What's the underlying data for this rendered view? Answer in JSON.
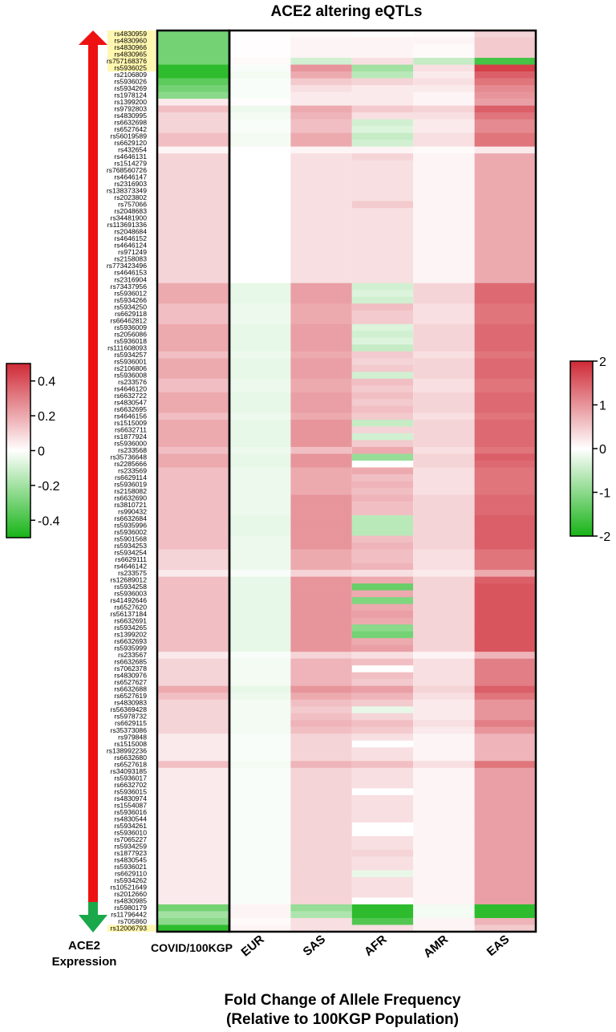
{
  "chart_data": {
    "type": "heatmap",
    "title": "ACE2 altering eQTLs",
    "xlabel_line1": "Fold Change of Allele Frequency",
    "xlabel_line2": "(Relative to 100KGP Population)",
    "arrow_label_line1": "ACE2",
    "arrow_label_line2": "Expression",
    "columns": [
      "COVID/100KGP",
      "EUR",
      "SAS",
      "AFR",
      "AMR",
      "EAS"
    ],
    "rows": [
      "rs4830959",
      "rs4830960",
      "rs4830966",
      "rs4830965",
      "rs757168376",
      "rs5936025",
      "rs2106809",
      "rs5936026",
      "rs5934269",
      "rs1978124",
      "rs1399200",
      "rs9792803",
      "rs4830995",
      "rs6632698",
      "rs6527642",
      "rs56019589",
      "rs6629120",
      "rs432654",
      "rs4646131",
      "rs1514279",
      "rs768560726",
      "rs4646147",
      "rs2316903",
      "rs138373349",
      "rs2023802",
      "rs757066",
      "rs2048683",
      "rs34481900",
      "rs113691336",
      "rs2048684",
      "rs4646152",
      "rs4646124",
      "rs971249",
      "rs2158083",
      "rs773423496",
      "rs4646153",
      "rs2316904",
      "rs73437956",
      "rs5936012",
      "rs5934266",
      "rs5934250",
      "rs6629118",
      "rs66462812",
      "rs5936009",
      "rs2056086",
      "rs5936018",
      "rs111608093",
      "rs5934257",
      "rs5936001",
      "rs2106806",
      "rs5936008",
      "rs233576",
      "rs4646120",
      "rs6632722",
      "rs4830547",
      "rs6632695",
      "rs4646156",
      "rs1515009",
      "rs6632711",
      "rs1877924",
      "rs5936000",
      "rs233568",
      "rs35736648",
      "rs2285666",
      "rs233569",
      "rs6629114",
      "rs5936019",
      "rs2158082",
      "rs6632690",
      "rs3810721",
      "rs990432",
      "rs6632684",
      "rs5935996",
      "rs5936002",
      "rs5901568",
      "rs5934253",
      "rs5934254",
      "rs6629111",
      "rs4646142",
      "rs233575",
      "rs12689012",
      "rs5934258",
      "rs5936003",
      "rs41492646",
      "rs6527620",
      "rs56137184",
      "rs6632691",
      "rs5934265",
      "rs1399202",
      "rs6632693",
      "rs5935999",
      "rs233567",
      "rs6632685",
      "rs7062378",
      "rs4830976",
      "rs6527627",
      "rs6632688",
      "rs6527619",
      "rs4830983",
      "rs56369428",
      "rs5978732",
      "rs6629115",
      "rs35373086",
      "rs979848",
      "rs1515008",
      "rs138992236",
      "rs6632680",
      "rs6527618",
      "rs34093185",
      "rs5936017",
      "rs6632702",
      "rs5936015",
      "rs4830974",
      "rs1554087",
      "rs5936016",
      "rs4830544",
      "rs5934261",
      "rs5936010",
      "rs7065227",
      "rs5934259",
      "rs1877923",
      "rs4830545",
      "rs5936021",
      "rs6629110",
      "rs5934262",
      "rs10521649",
      "rs2012660",
      "rs4830985",
      "rs5980179",
      "rs11796442",
      "rs705860",
      "rs12006793"
    ],
    "highlighted_rows": [
      "rs4830959",
      "rs4830960",
      "rs4830966",
      "rs4830965",
      "rs757168376",
      "rs5936025",
      "rs12006793"
    ],
    "values": [
      [
        -0.3,
        0.02,
        0.05,
        0.03,
        0.05,
        0.4
      ],
      [
        -0.3,
        0.02,
        0.1,
        0.1,
        0.1,
        0.5
      ],
      [
        -0.3,
        0.02,
        0.1,
        0.1,
        0.05,
        0.5
      ],
      [
        -0.3,
        0.02,
        0.1,
        0.1,
        0.05,
        0.5
      ],
      [
        -0.3,
        0.05,
        -0.4,
        0.3,
        -0.5,
        -1.6
      ],
      [
        -0.45,
        -0.05,
        1.0,
        -0.8,
        0.3,
        1.8
      ],
      [
        -0.45,
        -0.1,
        0.8,
        -0.6,
        0.2,
        1.5
      ],
      [
        -0.35,
        -0.05,
        0.5,
        0.4,
        0.3,
        1.3
      ],
      [
        -0.3,
        -0.05,
        0.3,
        0.2,
        0.2,
        1.1
      ],
      [
        -0.25,
        -0.05,
        0.2,
        0.2,
        0.1,
        1.0
      ],
      [
        0.05,
        0.02,
        0.2,
        0.2,
        0.1,
        0.9
      ],
      [
        0.15,
        -0.15,
        0.8,
        0.5,
        0.4,
        1.5
      ],
      [
        0.1,
        -0.1,
        0.7,
        0.3,
        0.3,
        1.3
      ],
      [
        0.1,
        -0.05,
        0.6,
        -0.4,
        0.2,
        1.1
      ],
      [
        0.1,
        -0.05,
        0.6,
        -0.3,
        0.2,
        1.1
      ],
      [
        0.15,
        -0.1,
        0.8,
        -0.5,
        0.3,
        1.3
      ],
      [
        0.15,
        -0.1,
        0.8,
        -0.4,
        0.3,
        1.3
      ],
      [
        0.02,
        0.0,
        0.1,
        0.1,
        0.05,
        0.2
      ],
      [
        0.1,
        0.0,
        0.3,
        0.4,
        0.1,
        0.8
      ],
      [
        0.1,
        0.0,
        0.3,
        0.3,
        0.1,
        0.8
      ],
      [
        0.1,
        0.0,
        0.3,
        0.3,
        0.1,
        0.8
      ],
      [
        0.1,
        0.0,
        0.3,
        0.3,
        0.1,
        0.8
      ],
      [
        0.1,
        0.0,
        0.3,
        0.3,
        0.1,
        0.8
      ],
      [
        0.1,
        0.0,
        0.3,
        0.3,
        0.1,
        0.8
      ],
      [
        0.1,
        0.0,
        0.3,
        0.3,
        0.1,
        0.8
      ],
      [
        0.1,
        0.0,
        0.3,
        0.5,
        0.1,
        0.8
      ],
      [
        0.1,
        0.0,
        0.3,
        0.3,
        0.1,
        0.8
      ],
      [
        0.1,
        0.0,
        0.3,
        0.3,
        0.1,
        0.8
      ],
      [
        0.1,
        0.0,
        0.3,
        0.3,
        0.1,
        0.8
      ],
      [
        0.1,
        0.0,
        0.3,
        0.3,
        0.1,
        0.8
      ],
      [
        0.1,
        0.0,
        0.3,
        0.3,
        0.1,
        0.8
      ],
      [
        0.1,
        0.0,
        0.3,
        0.3,
        0.1,
        0.8
      ],
      [
        0.1,
        0.0,
        0.3,
        0.3,
        0.1,
        0.8
      ],
      [
        0.1,
        0.0,
        0.3,
        0.3,
        0.1,
        0.8
      ],
      [
        0.1,
        0.0,
        0.3,
        0.3,
        0.1,
        0.8
      ],
      [
        0.1,
        0.0,
        0.3,
        0.3,
        0.1,
        0.8
      ],
      [
        0.1,
        0.0,
        0.3,
        0.3,
        0.1,
        0.8
      ],
      [
        0.2,
        -0.2,
        0.9,
        -0.4,
        0.4,
        1.4
      ],
      [
        0.2,
        -0.2,
        0.9,
        -0.3,
        0.4,
        1.4
      ],
      [
        0.2,
        -0.2,
        0.9,
        -0.4,
        0.4,
        1.4
      ],
      [
        0.15,
        -0.15,
        0.8,
        0.6,
        0.3,
        1.3
      ],
      [
        0.15,
        -0.15,
        0.8,
        0.5,
        0.3,
        1.3
      ],
      [
        0.15,
        -0.15,
        0.8,
        0.5,
        0.3,
        1.3
      ],
      [
        0.2,
        -0.2,
        0.9,
        -0.3,
        0.4,
        1.4
      ],
      [
        0.2,
        -0.2,
        0.9,
        -0.4,
        0.4,
        1.4
      ],
      [
        0.2,
        -0.2,
        0.9,
        -0.3,
        0.4,
        1.4
      ],
      [
        0.2,
        -0.2,
        0.9,
        -0.5,
        0.4,
        1.4
      ],
      [
        0.15,
        -0.15,
        0.8,
        0.5,
        0.3,
        1.3
      ],
      [
        0.2,
        -0.2,
        0.9,
        0.4,
        0.4,
        1.4
      ],
      [
        0.2,
        -0.2,
        0.9,
        0.5,
        0.4,
        1.4
      ],
      [
        0.2,
        -0.2,
        0.9,
        -0.4,
        0.4,
        1.4
      ],
      [
        0.15,
        -0.15,
        0.8,
        0.6,
        0.3,
        1.3
      ],
      [
        0.15,
        -0.15,
        0.8,
        0.5,
        0.3,
        1.3
      ],
      [
        0.2,
        -0.2,
        0.9,
        0.6,
        0.4,
        1.4
      ],
      [
        0.2,
        -0.2,
        0.9,
        0.5,
        0.4,
        1.4
      ],
      [
        0.2,
        -0.2,
        0.9,
        0.6,
        0.4,
        1.4
      ],
      [
        0.15,
        -0.15,
        0.8,
        0.5,
        0.3,
        1.3
      ],
      [
        0.2,
        -0.2,
        1.0,
        -0.5,
        0.4,
        1.4
      ],
      [
        0.2,
        -0.2,
        1.0,
        0.4,
        0.4,
        1.4
      ],
      [
        0.2,
        -0.2,
        1.0,
        -0.4,
        0.4,
        1.4
      ],
      [
        0.2,
        -0.2,
        1.0,
        0.5,
        0.4,
        1.4
      ],
      [
        0.15,
        -0.15,
        0.6,
        0.8,
        0.3,
        1.3
      ],
      [
        0.2,
        -0.2,
        1.0,
        -0.9,
        0.4,
        1.5
      ],
      [
        0.2,
        -0.2,
        1.0,
        0.0,
        0.4,
        1.4
      ],
      [
        0.15,
        -0.15,
        0.8,
        0.8,
        0.3,
        1.3
      ],
      [
        0.15,
        -0.15,
        0.8,
        0.6,
        0.3,
        1.3
      ],
      [
        0.15,
        -0.15,
        0.8,
        0.7,
        0.3,
        1.3
      ],
      [
        0.15,
        -0.15,
        0.8,
        0.6,
        0.3,
        1.3
      ],
      [
        0.15,
        -0.15,
        1.0,
        0.7,
        0.4,
        1.4
      ],
      [
        0.15,
        -0.15,
        1.0,
        0.6,
        0.4,
        1.4
      ],
      [
        0.15,
        -0.15,
        1.0,
        0.6,
        0.4,
        1.4
      ],
      [
        0.15,
        -0.2,
        1.0,
        -0.6,
        0.4,
        1.5
      ],
      [
        0.15,
        -0.2,
        1.0,
        -0.6,
        0.4,
        1.5
      ],
      [
        0.15,
        -0.2,
        1.0,
        -0.6,
        0.4,
        1.5
      ],
      [
        0.15,
        -0.15,
        1.0,
        0.6,
        0.4,
        1.5
      ],
      [
        0.15,
        -0.15,
        1.0,
        0.7,
        0.4,
        1.5
      ],
      [
        0.1,
        -0.15,
        0.8,
        0.6,
        0.3,
        1.3
      ],
      [
        0.1,
        -0.15,
        0.8,
        0.6,
        0.3,
        1.3
      ],
      [
        0.1,
        -0.15,
        0.8,
        0.7,
        0.3,
        1.3
      ],
      [
        0.05,
        -0.05,
        0.4,
        0.3,
        0.2,
        0.8
      ],
      [
        0.15,
        -0.2,
        1.0,
        0.8,
        0.4,
        1.5
      ],
      [
        0.15,
        -0.2,
        1.0,
        -1.3,
        0.4,
        1.6
      ],
      [
        0.15,
        -0.2,
        1.0,
        0.8,
        0.4,
        1.6
      ],
      [
        0.15,
        -0.2,
        1.0,
        -1.1,
        0.4,
        1.6
      ],
      [
        0.15,
        -0.2,
        1.0,
        0.8,
        0.4,
        1.6
      ],
      [
        0.15,
        -0.2,
        1.0,
        0.9,
        0.4,
        1.6
      ],
      [
        0.15,
        -0.2,
        1.0,
        0.8,
        0.4,
        1.6
      ],
      [
        0.15,
        -0.2,
        1.0,
        -1.0,
        0.4,
        1.6
      ],
      [
        0.15,
        -0.2,
        1.0,
        -1.2,
        0.4,
        1.6
      ],
      [
        0.15,
        -0.2,
        1.0,
        0.8,
        0.4,
        1.6
      ],
      [
        0.15,
        -0.2,
        1.0,
        0.9,
        0.4,
        1.6
      ],
      [
        0.05,
        -0.05,
        0.4,
        0.3,
        0.1,
        0.7
      ],
      [
        0.1,
        -0.1,
        0.7,
        0.6,
        0.3,
        1.2
      ],
      [
        0.1,
        -0.1,
        0.7,
        0.0,
        0.3,
        1.2
      ],
      [
        0.1,
        -0.1,
        0.7,
        0.6,
        0.3,
        1.2
      ],
      [
        0.1,
        -0.1,
        0.7,
        0.5,
        0.3,
        1.2
      ],
      [
        0.2,
        -0.2,
        1.0,
        0.9,
        0.4,
        1.5
      ],
      [
        0.15,
        -0.15,
        0.8,
        0.7,
        0.3,
        1.3
      ],
      [
        0.1,
        -0.1,
        0.6,
        0.5,
        0.2,
        1.0
      ],
      [
        0.1,
        -0.1,
        0.5,
        -0.2,
        0.2,
        1.0
      ],
      [
        0.1,
        -0.1,
        0.6,
        0.4,
        0.2,
        1.0
      ],
      [
        0.1,
        -0.1,
        0.7,
        0.6,
        0.3,
        1.2
      ],
      [
        0.1,
        -0.1,
        0.6,
        0.5,
        0.2,
        1.0
      ],
      [
        0.05,
        -0.05,
        0.4,
        0.3,
        0.1,
        0.7
      ],
      [
        0.05,
        -0.05,
        0.4,
        0.0,
        0.1,
        0.7
      ],
      [
        0.05,
        -0.05,
        0.4,
        0.3,
        0.1,
        0.7
      ],
      [
        0.05,
        -0.05,
        0.4,
        0.3,
        0.1,
        0.7
      ],
      [
        0.15,
        -0.1,
        0.7,
        0.6,
        0.3,
        1.3
      ],
      [
        0.05,
        -0.05,
        0.4,
        0.3,
        0.1,
        0.9
      ],
      [
        0.05,
        -0.05,
        0.4,
        0.3,
        0.1,
        0.9
      ],
      [
        0.05,
        -0.05,
        0.4,
        0.3,
        0.1,
        0.9
      ],
      [
        0.05,
        -0.05,
        0.4,
        0.0,
        0.1,
        0.9
      ],
      [
        0.05,
        -0.05,
        0.4,
        0.3,
        0.1,
        0.9
      ],
      [
        0.05,
        -0.05,
        0.4,
        0.3,
        0.1,
        0.9
      ],
      [
        0.05,
        -0.05,
        0.4,
        0.3,
        0.1,
        0.9
      ],
      [
        0.05,
        -0.05,
        0.4,
        0.3,
        0.1,
        0.9
      ],
      [
        0.05,
        -0.05,
        0.4,
        0.0,
        0.1,
        0.9
      ],
      [
        0.05,
        -0.05,
        0.4,
        0.0,
        0.1,
        0.9
      ],
      [
        0.05,
        -0.05,
        0.4,
        0.3,
        0.1,
        0.9
      ],
      [
        0.05,
        -0.05,
        0.4,
        0.3,
        0.1,
        0.9
      ],
      [
        0.05,
        -0.05,
        0.4,
        0.4,
        0.1,
        0.9
      ],
      [
        0.05,
        -0.05,
        0.4,
        0.3,
        0.1,
        0.9
      ],
      [
        0.05,
        -0.05,
        0.4,
        0.3,
        0.1,
        0.9
      ],
      [
        0.05,
        -0.05,
        0.4,
        -0.2,
        0.1,
        0.9
      ],
      [
        0.05,
        -0.05,
        0.4,
        0.3,
        0.1,
        0.9
      ],
      [
        0.05,
        -0.05,
        0.4,
        0.3,
        0.1,
        0.9
      ],
      [
        0.05,
        -0.05,
        0.4,
        0.3,
        0.1,
        0.9
      ],
      [
        0.05,
        -0.05,
        0.4,
        0.0,
        0.1,
        0.9
      ],
      [
        -0.3,
        0.1,
        -0.9,
        -1.8,
        -0.1,
        -1.8
      ],
      [
        -0.2,
        0.1,
        -0.7,
        -1.8,
        -0.1,
        -1.8
      ],
      [
        -0.25,
        0.05,
        0.3,
        -1.5,
        0.1,
        0.7
      ],
      [
        -0.45,
        0.1,
        0.3,
        0.3,
        0.1,
        0.5
      ]
    ],
    "colorbar_left": {
      "range": [
        -0.5,
        0.5
      ],
      "ticks": [
        "0.4",
        "0.2",
        "0",
        "-0.2",
        "-0.4"
      ],
      "applies_to": [
        "COVID/100KGP"
      ]
    },
    "colorbar_right": {
      "range": [
        -2,
        2
      ],
      "ticks": [
        "2",
        "1",
        "0",
        "-1",
        "-2"
      ],
      "applies_to": [
        "EUR",
        "SAS",
        "AFR",
        "AMR",
        "EAS"
      ]
    },
    "colors": {
      "negative": "#17b417",
      "neutral": "#ffffff",
      "positive": "#cf2a36",
      "highlight": "#fff7b0",
      "arrow_up": "#ee1111",
      "arrow_down": "#1aa84a"
    }
  }
}
